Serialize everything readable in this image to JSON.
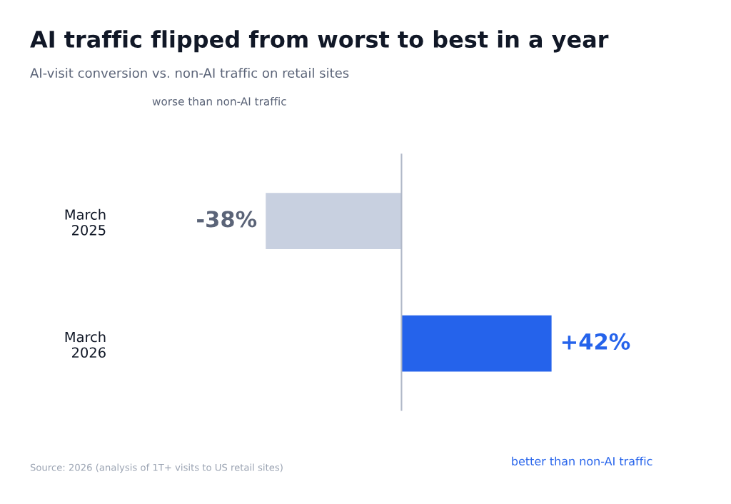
{
  "chart_data": {
    "type": "bar",
    "orientation": "horizontal",
    "title": "AI traffic flipped from worst to best in a year",
    "subtitle": "AI-visit conversion vs. non-AI traffic on retail sites",
    "categories": [
      "March\n2025",
      "March\n2026"
    ],
    "values": [
      -38,
      42
    ],
    "colors": [
      "#c8d0e0",
      "#2563eb"
    ],
    "value_labels": [
      "-38%",
      "+42%"
    ],
    "grid": false,
    "legend": false,
    "annotations": [
      "worse than non-AI traffic",
      "better than non-AI traffic",
      "Source: 2026 (analysis of 1T+ visits to US retail sites)"
    ]
  }
}
